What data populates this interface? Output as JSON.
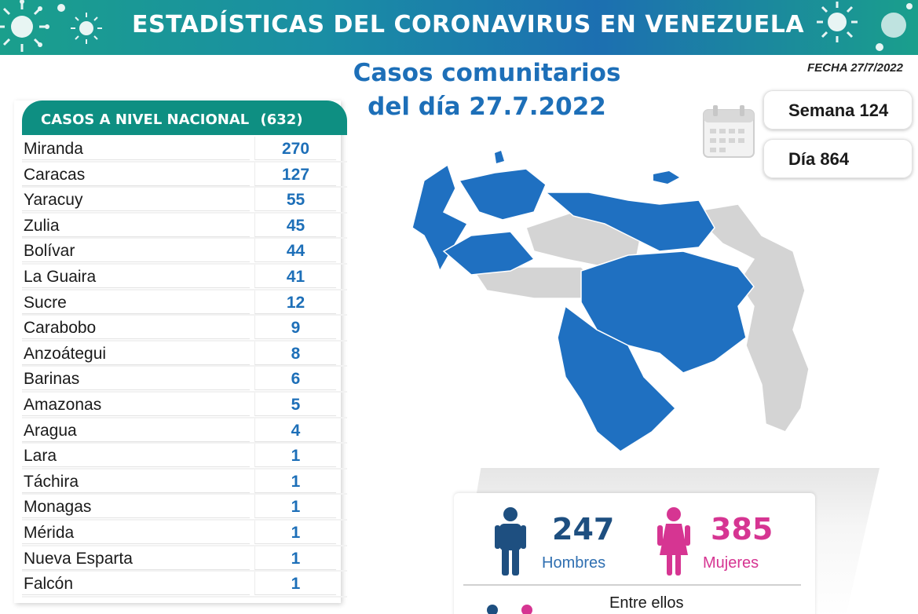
{
  "banner": {
    "title": "ESTADÍSTICAS DEL CORONAVIRUS EN VENEZUELA"
  },
  "subtitle": {
    "line1": "Casos comunitarios",
    "line2": "del día 27.7.2022"
  },
  "fecha": "FECHA 27/7/2022",
  "semana": "Semana 124",
  "dia": "Día 864",
  "table": {
    "header": "CASOS A NIVEL NACIONAL",
    "total": "(632)",
    "rows": [
      {
        "name": "Miranda",
        "value": "270"
      },
      {
        "name": "Caracas",
        "value": "127"
      },
      {
        "name": "Yaracuy",
        "value": "55"
      },
      {
        "name": "Zulia",
        "value": "45"
      },
      {
        "name": "Bolívar",
        "value": "44"
      },
      {
        "name": "La Guaira",
        "value": "41"
      },
      {
        "name": "Sucre",
        "value": "12"
      },
      {
        "name": "Carabobo",
        "value": "9"
      },
      {
        "name": "Anzoátegui",
        "value": "8"
      },
      {
        "name": "Barinas",
        "value": "6"
      },
      {
        "name": "Amazonas",
        "value": "5"
      },
      {
        "name": "Aragua",
        "value": "4"
      },
      {
        "name": "Lara",
        "value": "1"
      },
      {
        "name": "Táchira",
        "value": "1"
      },
      {
        "name": "Monagas",
        "value": "1"
      },
      {
        "name": "Mérida",
        "value": "1"
      },
      {
        "name": "Nueva Esparta",
        "value": "1"
      },
      {
        "name": "Falcón",
        "value": "1"
      }
    ]
  },
  "gender": {
    "men_count": "247",
    "men_label": "Hombres",
    "women_count": "385",
    "women_label": "Mujeres",
    "entre": "Entre ellos"
  },
  "colors": {
    "teal": "#0e8f82",
    "blue": "#1d6fb8",
    "map_blue": "#1f70c1",
    "map_gray": "#d4d4d4",
    "men": "#1e4f80",
    "women": "#d63592"
  },
  "icons": [
    "coronavirus-icon",
    "calendar-icon",
    "man-icon",
    "woman-icon"
  ]
}
